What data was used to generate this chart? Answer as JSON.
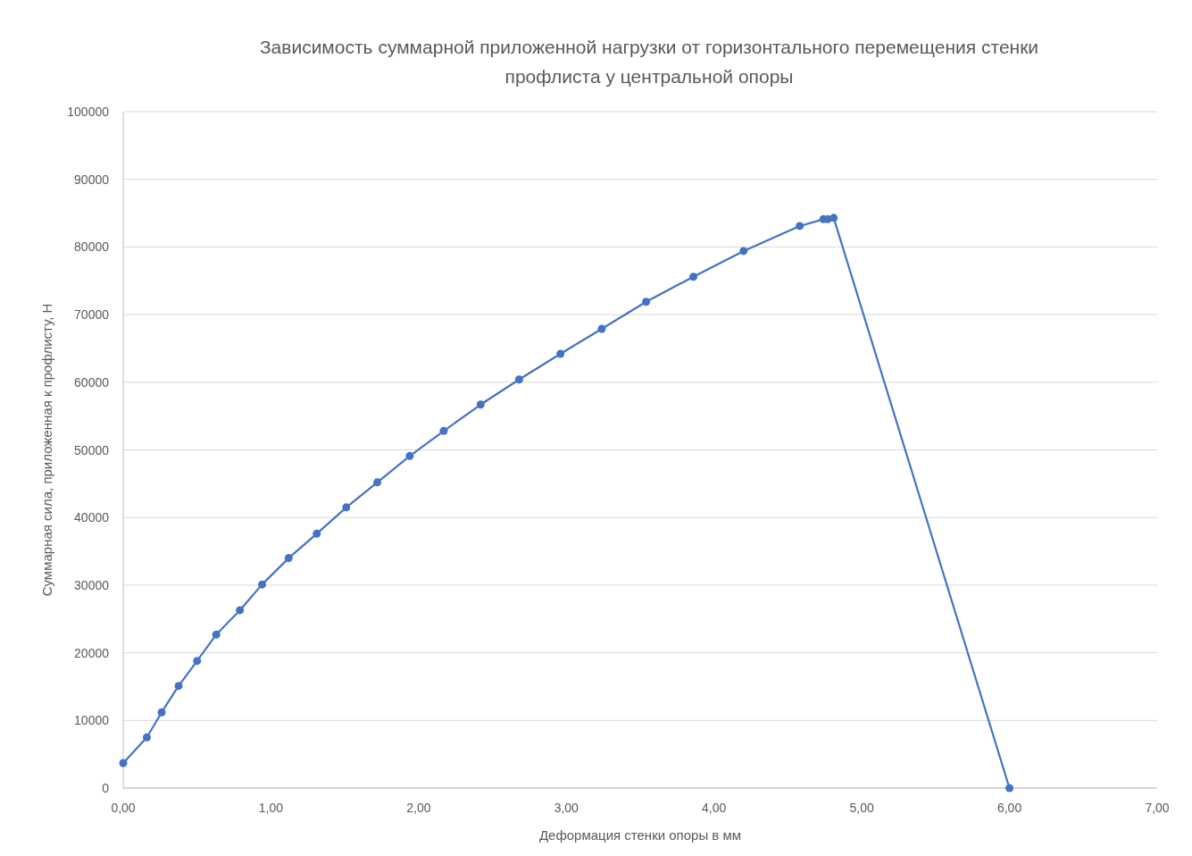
{
  "chart_data": {
    "type": "line",
    "title": "Зависимость суммарной приложенной нагрузки от горизонтального перемещения стенки профлиста у центральной опоры",
    "xlabel": "Деформация стенки опоры в мм",
    "ylabel": "Суммарная сила, приложенная к профлисту, Н",
    "x": [
      0,
      0.16,
      0.26,
      0.375,
      0.5,
      0.63,
      0.79,
      0.94,
      1.12,
      1.31,
      1.51,
      1.72,
      1.94,
      2.17,
      2.42,
      2.68,
      2.96,
      3.24,
      3.54,
      3.86,
      4.2,
      4.58,
      4.74,
      4.77,
      4.81,
      6.0
    ],
    "series": [
      {
        "color": "#4472c4",
        "values": [
          3700,
          7500,
          11200,
          15100,
          18800,
          22700,
          26300,
          30100,
          34000,
          37600,
          41500,
          45200,
          49100,
          52800,
          56700,
          60400,
          64200,
          67900,
          71900,
          75600,
          79400,
          83100,
          84100,
          84100,
          84300,
          0
        ]
      }
    ],
    "xlim": [
      0,
      7
    ],
    "xticks": [
      {
        "value": 0,
        "label": "0,00"
      },
      {
        "value": 1,
        "label": "1,00"
      },
      {
        "value": 2,
        "label": "2,00"
      },
      {
        "value": 3,
        "label": "3,00"
      },
      {
        "value": 4,
        "label": "4,00"
      },
      {
        "value": 5,
        "label": "5,00"
      },
      {
        "value": 6,
        "label": "6,00"
      },
      {
        "value": 7,
        "label": "7,00"
      }
    ],
    "ylim": [
      0,
      100000
    ],
    "yticks": [
      0,
      10000,
      20000,
      30000,
      40000,
      50000,
      60000,
      70000,
      80000,
      90000,
      100000
    ],
    "grid": "y",
    "marker": "circle",
    "line_style": "solid"
  }
}
